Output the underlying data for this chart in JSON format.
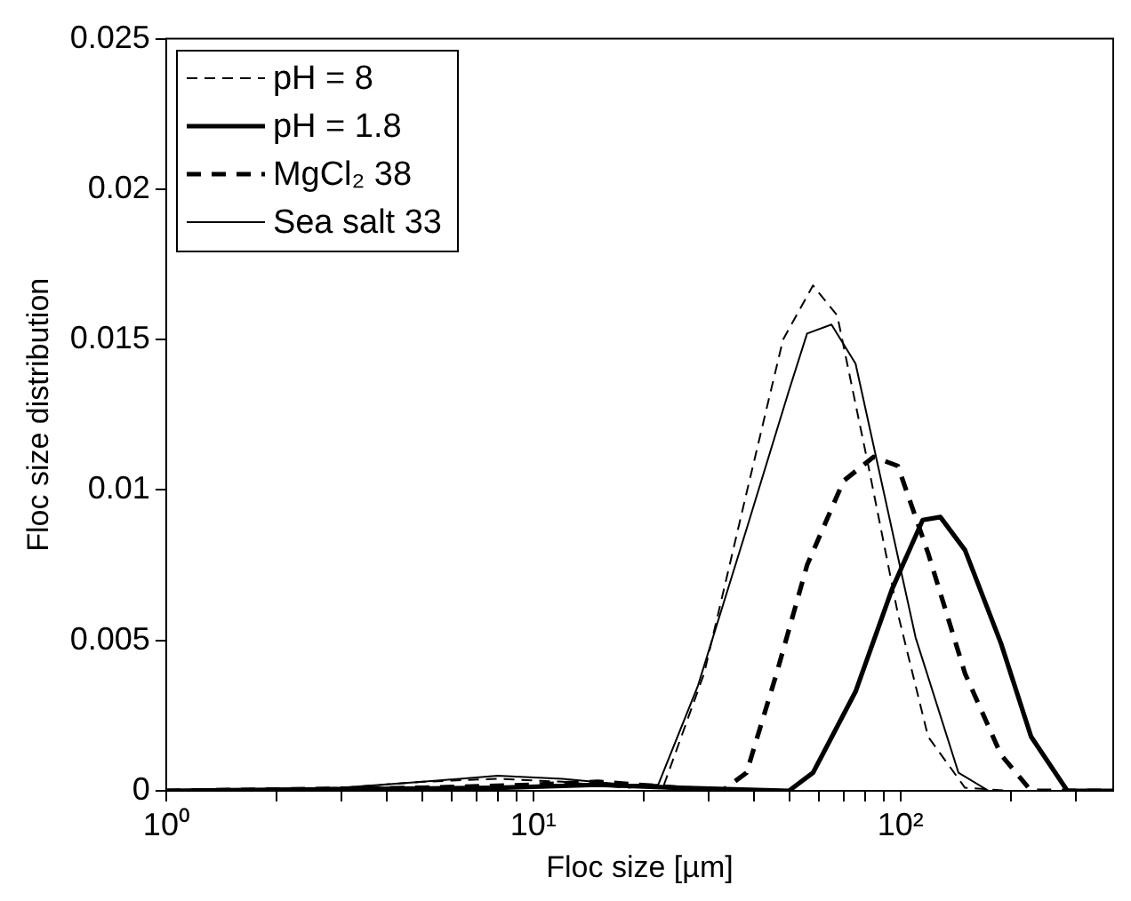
{
  "chart_data": {
    "type": "line",
    "xlabel": "Floc size [µm]",
    "ylabel": "Floc size distribution",
    "log": "x",
    "xlim": [
      1,
      380
    ],
    "ylim": [
      0,
      0.025
    ],
    "xticks": [
      {
        "value": 1,
        "label": "10⁰"
      },
      {
        "value": 2,
        "label": null
      },
      {
        "value": 3,
        "label": null
      },
      {
        "value": 4,
        "label": null
      },
      {
        "value": 5,
        "label": null
      },
      {
        "value": 6,
        "label": null
      },
      {
        "value": 7,
        "label": null
      },
      {
        "value": 8,
        "label": null
      },
      {
        "value": 9,
        "label": null
      },
      {
        "value": 10,
        "label": "10¹"
      },
      {
        "value": 20,
        "label": null
      },
      {
        "value": 30,
        "label": null
      },
      {
        "value": 40,
        "label": null
      },
      {
        "value": 50,
        "label": null
      },
      {
        "value": 60,
        "label": null
      },
      {
        "value": 70,
        "label": null
      },
      {
        "value": 80,
        "label": null
      },
      {
        "value": 90,
        "label": null
      },
      {
        "value": 100,
        "label": "10²"
      },
      {
        "value": 200,
        "label": null
      },
      {
        "value": 300,
        "label": null
      }
    ],
    "yticks": [
      0,
      0.005,
      0.01,
      0.015,
      0.02,
      0.025
    ],
    "grid": false,
    "legend": "top left",
    "marker": "none",
    "series": [
      {
        "name": "pH = 8",
        "color": "#000000",
        "line_style": "dashed",
        "x": [
          1,
          3,
          5,
          8,
          12,
          18,
          22.7,
          29.2,
          38.1,
          47.9,
          57.8,
          67.3,
          81.5,
          98.4,
          119,
          150,
          200,
          380
        ],
        "values": [
          0,
          0.0001,
          0.0003,
          0.0004,
          0.0003,
          0.0001,
          0.0002,
          0.0039,
          0.0099,
          0.015,
          0.0168,
          0.0158,
          0.0109,
          0.0059,
          0.0018,
          0.0001,
          0,
          0
        ]
      },
      {
        "name": "pH = 1.8",
        "color": "#000000",
        "line_style": "solid",
        "x": [
          1,
          8,
          15,
          25,
          49.7,
          57.8,
          75.5,
          94.9,
          115,
          128.5,
          150,
          188,
          227,
          285,
          380
        ],
        "values": [
          0,
          0.0001,
          0.0002,
          0.0001,
          0,
          0.0006,
          0.0033,
          0.0067,
          0.009,
          0.0091,
          0.008,
          0.0049,
          0.0018,
          0,
          0
        ]
      },
      {
        "name": "MgCl₂ 38",
        "color": "#000000",
        "line_style": "dashed",
        "x": [
          1,
          5,
          10,
          15,
          25,
          32.7,
          38.1,
          46,
          55.7,
          70,
          84.5,
          98.4,
          119,
          150,
          188,
          227,
          380
        ],
        "values": [
          0,
          0.0001,
          0.0002,
          0.0003,
          0.0001,
          0,
          0.0006,
          0.0039,
          0.0075,
          0.0103,
          0.0111,
          0.0108,
          0.0079,
          0.0039,
          0.0012,
          0,
          0
        ]
      },
      {
        "name": "Sea salt 33",
        "color": "#000000",
        "line_style": "solid",
        "x": [
          1,
          3,
          5,
          8,
          12,
          18,
          21.9,
          28.1,
          38.1,
          49.7,
          55.7,
          64.9,
          75.5,
          88,
          110,
          144,
          174,
          380
        ],
        "values": [
          0,
          0.0001,
          0.0003,
          0.0005,
          0.0004,
          0.0002,
          0.0002,
          0.0035,
          0.0087,
          0.0133,
          0.0152,
          0.0155,
          0.0142,
          0.0105,
          0.0051,
          0.0006,
          0,
          0
        ]
      }
    ]
  }
}
